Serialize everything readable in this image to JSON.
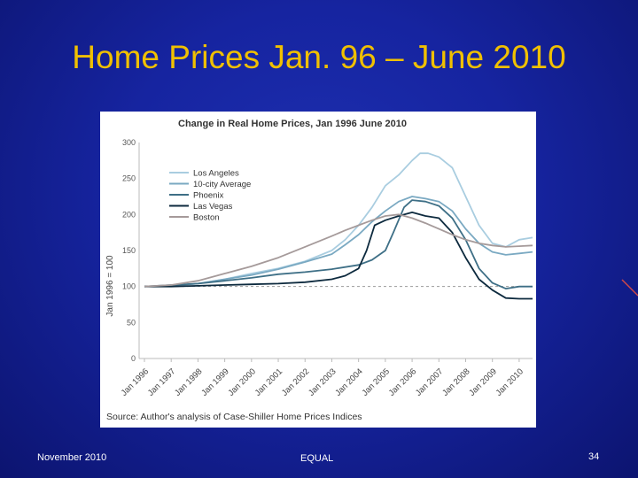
{
  "slide": {
    "title": "Home Prices Jan. 96 – June 2010",
    "footer_left": "November 2010",
    "footer_center": "EQUAL",
    "footer_right": "34"
  },
  "chart_data": {
    "type": "line",
    "title": "Change in Real Home Prices, Jan 1996   June 2010",
    "ylabel": "Jan 1996 = 100",
    "source": "Source: Author's analysis of Case-Shiller Home Prices Indices",
    "ylim": [
      0,
      300
    ],
    "yticks": [
      0,
      50,
      100,
      150,
      200,
      250,
      300
    ],
    "xlim": [
      1996,
      2010.5
    ],
    "xticks": [
      {
        "value": 1996,
        "label": "Jan 1996"
      },
      {
        "value": 1997,
        "label": "Jan 1997"
      },
      {
        "value": 1998,
        "label": "Jan 1998"
      },
      {
        "value": 1999,
        "label": "Jan 1999"
      },
      {
        "value": 2000,
        "label": "Jan 2000"
      },
      {
        "value": 2001,
        "label": "Jan 2001"
      },
      {
        "value": 2002,
        "label": "Jan 2002"
      },
      {
        "value": 2003,
        "label": "Jan 2003"
      },
      {
        "value": 2004,
        "label": "Jan 2004"
      },
      {
        "value": 2005,
        "label": "Jan 2005"
      },
      {
        "value": 2006,
        "label": "Jan 2006"
      },
      {
        "value": 2007,
        "label": "Jan 2007"
      },
      {
        "value": 2008,
        "label": "Jan 2008"
      },
      {
        "value": 2009,
        "label": "Jan 2009"
      },
      {
        "value": 2010,
        "label": "Jan 2010"
      }
    ],
    "reference_line": 100,
    "legend_position": "top-left",
    "series": [
      {
        "name": "Los Angeles",
        "color": "#a9cde0",
        "x": [
          1996,
          1997,
          1998,
          1999,
          2000,
          2001,
          2002,
          2003,
          2003.5,
          2004,
          2004.5,
          2005,
          2005.5,
          2006,
          2006.3,
          2006.6,
          2007,
          2007.5,
          2008,
          2008.5,
          2009,
          2009.5,
          2010,
          2010.5
        ],
        "y": [
          100,
          101,
          104,
          110,
          118,
          125,
          135,
          150,
          165,
          185,
          210,
          240,
          255,
          275,
          285,
          285,
          280,
          265,
          225,
          185,
          160,
          155,
          165,
          168
        ]
      },
      {
        "name": "10-city Average",
        "color": "#7aa9c2",
        "x": [
          1996,
          1997,
          1998,
          1999,
          2000,
          2001,
          2002,
          2003,
          2003.5,
          2004,
          2004.5,
          2005,
          2005.5,
          2006,
          2006.5,
          2007,
          2007.5,
          2008,
          2008.5,
          2009,
          2009.5,
          2010,
          2010.5
        ],
        "y": [
          100,
          101,
          104,
          110,
          116,
          124,
          134,
          145,
          158,
          172,
          190,
          205,
          218,
          225,
          222,
          218,
          205,
          180,
          160,
          148,
          144,
          146,
          148
        ]
      },
      {
        "name": "Phoenix",
        "color": "#3e6f86",
        "x": [
          1996,
          1997,
          1998,
          1999,
          2000,
          2001,
          2002,
          2003,
          2004,
          2004.5,
          2005,
          2005.3,
          2005.7,
          2006,
          2006.5,
          2007,
          2007.5,
          2008,
          2008.5,
          2009,
          2009.5,
          2010,
          2010.5
        ],
        "y": [
          100,
          102,
          104,
          108,
          112,
          117,
          120,
          124,
          130,
          137,
          150,
          175,
          210,
          220,
          218,
          212,
          195,
          165,
          125,
          105,
          97,
          100,
          100
        ]
      },
      {
        "name": "Las Vegas",
        "color": "#0d2a3e",
        "x": [
          1996,
          1997,
          1998,
          1999,
          2000,
          2001,
          2002,
          2003,
          2003.5,
          2004,
          2004.3,
          2004.6,
          2005,
          2005.5,
          2006,
          2006.5,
          2007,
          2007.5,
          2008,
          2008.5,
          2009,
          2009.5,
          2010,
          2010.5
        ],
        "y": [
          100,
          100,
          101,
          102,
          103,
          104,
          106,
          110,
          115,
          125,
          150,
          185,
          192,
          198,
          203,
          198,
          195,
          175,
          140,
          110,
          95,
          84,
          83,
          83
        ]
      },
      {
        "name": "Boston",
        "color": "#a59a9a",
        "x": [
          1996,
          1997,
          1998,
          1999,
          2000,
          2001,
          2002,
          2003,
          2003.5,
          2004,
          2004.5,
          2005,
          2005.5,
          2006,
          2006.5,
          2007,
          2007.5,
          2008,
          2008.5,
          2009,
          2009.5,
          2010,
          2010.5
        ],
        "y": [
          100,
          102,
          108,
          118,
          128,
          140,
          155,
          170,
          178,
          185,
          192,
          198,
          200,
          195,
          188,
          180,
          172,
          165,
          160,
          157,
          155,
          156,
          157
        ]
      }
    ]
  }
}
